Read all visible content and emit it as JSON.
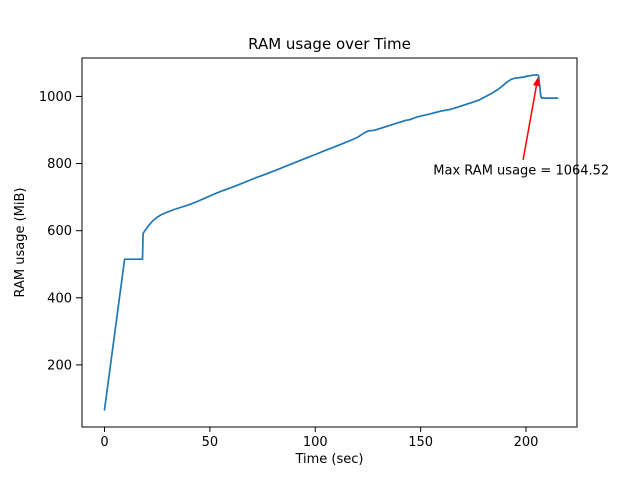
{
  "figure": {
    "title": "RAM usage over Time",
    "xlabel": "Time (sec)",
    "ylabel": "RAM usage (MiB)"
  },
  "chart_data": {
    "type": "line",
    "title": "RAM usage over Time",
    "xlabel": "Time (sec)",
    "ylabel": "RAM usage (MiB)",
    "xlim": [
      -10.7,
      224.2
    ],
    "ylim": [
      15,
      1114.5
    ],
    "xticks": [
      0,
      50,
      100,
      150,
      200
    ],
    "yticks": [
      200,
      400,
      600,
      800,
      1000
    ],
    "grid": false,
    "legend": null,
    "line_color": "#1f77b4",
    "axis_color": "#000000",
    "series": [
      {
        "name": "RAM usage",
        "points": [
          [
            0,
            66
          ],
          [
            9.5,
            515
          ],
          [
            18,
            515
          ],
          [
            18.3,
            592
          ],
          [
            19.5,
            603
          ],
          [
            21,
            616
          ],
          [
            23,
            630
          ],
          [
            25,
            640
          ],
          [
            27,
            648
          ],
          [
            30,
            656
          ],
          [
            33,
            663
          ],
          [
            36,
            669
          ],
          [
            40,
            677
          ],
          [
            44,
            687
          ],
          [
            48,
            698
          ],
          [
            52,
            709
          ],
          [
            56,
            719
          ],
          [
            60,
            728
          ],
          [
            64,
            738
          ],
          [
            68,
            748
          ],
          [
            72,
            758
          ],
          [
            76,
            767
          ],
          [
            80,
            777
          ],
          [
            84,
            787
          ],
          [
            88,
            797
          ],
          [
            92,
            807
          ],
          [
            96,
            817
          ],
          [
            100,
            827
          ],
          [
            104,
            837
          ],
          [
            108,
            847
          ],
          [
            112,
            857
          ],
          [
            116,
            867
          ],
          [
            120,
            878
          ],
          [
            123,
            890
          ],
          [
            125,
            897
          ],
          [
            128,
            899
          ],
          [
            131,
            905
          ],
          [
            134,
            911
          ],
          [
            137,
            917
          ],
          [
            140,
            923
          ],
          [
            143,
            929
          ],
          [
            145,
            931
          ],
          [
            148,
            938
          ],
          [
            151,
            943
          ],
          [
            154,
            947
          ],
          [
            157,
            952
          ],
          [
            160,
            957
          ],
          [
            163,
            960
          ],
          [
            166,
            965
          ],
          [
            169,
            971
          ],
          [
            172,
            977
          ],
          [
            175,
            983
          ],
          [
            178,
            990
          ],
          [
            181,
            1000
          ],
          [
            184,
            1010
          ],
          [
            187,
            1022
          ],
          [
            189,
            1032
          ],
          [
            191,
            1043
          ],
          [
            193,
            1051
          ],
          [
            195,
            1055
          ],
          [
            197,
            1056
          ],
          [
            199,
            1058
          ],
          [
            201,
            1061
          ],
          [
            203,
            1063
          ],
          [
            205,
            1064.52
          ],
          [
            206,
            1062
          ],
          [
            207,
            1000
          ],
          [
            207.5,
            995
          ],
          [
            215,
            995
          ]
        ]
      }
    ],
    "annotation": {
      "text": "Max RAM usage = 1064.52",
      "max_value": 1064.52,
      "color": "#ff0000",
      "text_pos": [
        156,
        781
      ],
      "arrow_tail": [
        198.6,
        811
      ],
      "arrow_tip": [
        205.7,
        1058
      ]
    }
  }
}
